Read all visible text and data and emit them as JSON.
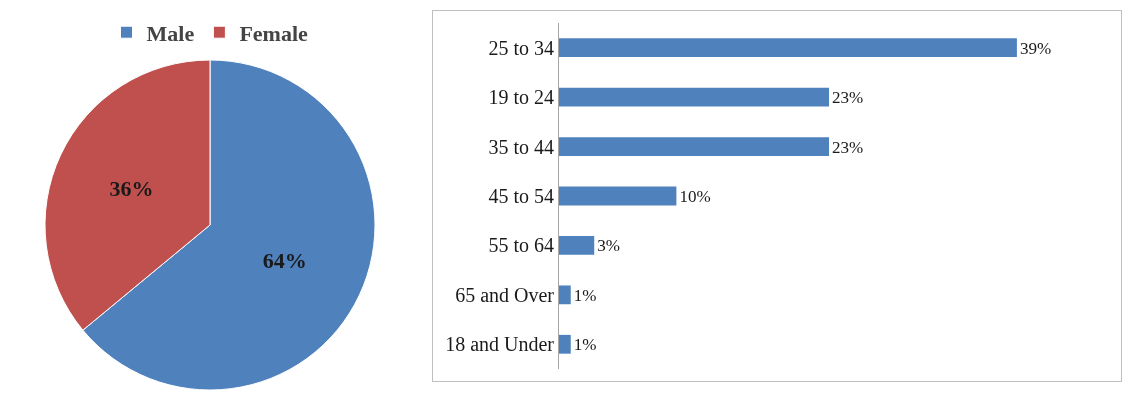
{
  "chart_data": [
    {
      "type": "pie",
      "categories": [
        "Male",
        "Female"
      ],
      "values": [
        64,
        36
      ],
      "colors": [
        "#4f81bd",
        "#c0504d"
      ],
      "value_labels": [
        "64%",
        "36%"
      ],
      "legend": "top"
    },
    {
      "type": "bar",
      "orientation": "horizontal",
      "categories": [
        "25 to 34",
        "19 to 24",
        "35 to 44",
        "45 to 54",
        "55 to 64",
        "65 and Over",
        "18 and Under"
      ],
      "values": [
        39,
        23,
        23,
        10,
        3,
        1,
        1
      ],
      "color": "#4f81bd",
      "value_labels": [
        "39%",
        "23%",
        "23%",
        "10%",
        "3%",
        "1%",
        "1%"
      ],
      "grid": false,
      "legend": false,
      "tick_labels": "y"
    }
  ]
}
